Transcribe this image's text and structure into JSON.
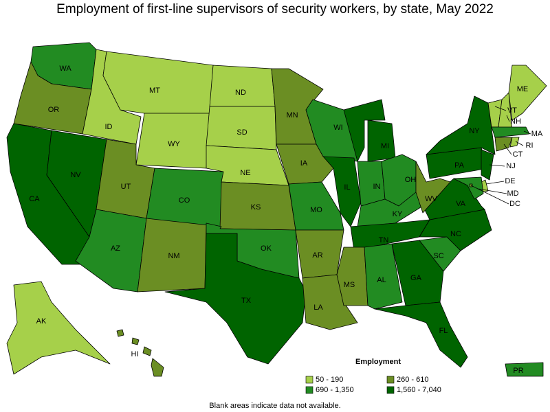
{
  "title": "Employment of first-line supervisors of security workers, by state, May 2022",
  "legend": {
    "title": "Employment",
    "items": [
      {
        "label": "50 - 190",
        "color": "#a6d04a"
      },
      {
        "label": "260 - 610",
        "color": "#6b8e23"
      },
      {
        "label": "690 - 1,350",
        "color": "#228b22"
      },
      {
        "label": "1,560 - 7,040",
        "color": "#006400"
      }
    ]
  },
  "states": [
    {
      "label": "WA",
      "color": "#228b22"
    },
    {
      "label": "OR",
      "color": "#6b8e23"
    },
    {
      "label": "CA",
      "color": "#006400"
    },
    {
      "label": "NV",
      "color": "#006400"
    },
    {
      "label": "ID",
      "color": "#a6d04a"
    },
    {
      "label": "MT",
      "color": "#a6d04a"
    },
    {
      "label": "WY",
      "color": "#a6d04a"
    },
    {
      "label": "UT",
      "color": "#6b8e23"
    },
    {
      "label": "AZ",
      "color": "#228b22"
    },
    {
      "label": "NM",
      "color": "#6b8e23"
    },
    {
      "label": "CO",
      "color": "#228b22"
    },
    {
      "label": "ND",
      "color": "#a6d04a"
    },
    {
      "label": "SD",
      "color": "#a6d04a"
    },
    {
      "label": "NE",
      "color": "#a6d04a"
    },
    {
      "label": "KS",
      "color": "#6b8e23"
    },
    {
      "label": "OK",
      "color": "#228b22"
    },
    {
      "label": "TX",
      "color": "#006400"
    },
    {
      "label": "MN",
      "color": "#6b8e23"
    },
    {
      "label": "IA",
      "color": "#6b8e23"
    },
    {
      "label": "MO",
      "color": "#228b22"
    },
    {
      "label": "AR",
      "color": "#6b8e23"
    },
    {
      "label": "LA",
      "color": "#6b8e23"
    },
    {
      "label": "WI",
      "color": "#228b22"
    },
    {
      "label": "IL",
      "color": "#006400"
    },
    {
      "label": "MI",
      "color": "#006400"
    },
    {
      "label": "IN",
      "color": "#228b22"
    },
    {
      "label": "OH",
      "color": "#228b22"
    },
    {
      "label": "KY",
      "color": "#228b22"
    },
    {
      "label": "TN",
      "color": "#006400"
    },
    {
      "label": "MS",
      "color": "#6b8e23"
    },
    {
      "label": "AL",
      "color": "#228b22"
    },
    {
      "label": "GA",
      "color": "#006400"
    },
    {
      "label": "FL",
      "color": "#006400"
    },
    {
      "label": "SC",
      "color": "#228b22"
    },
    {
      "label": "NC",
      "color": "#006400"
    },
    {
      "label": "VA",
      "color": "#006400"
    },
    {
      "label": "WV",
      "color": "#6b8e23"
    },
    {
      "label": "PA",
      "color": "#006400"
    },
    {
      "label": "NY",
      "color": "#006400"
    },
    {
      "label": "VT",
      "color": "#a6d04a"
    },
    {
      "label": "NH",
      "color": "#a6d04a"
    },
    {
      "label": "ME",
      "color": "#a6d04a"
    },
    {
      "label": "MA",
      "color": "#228b22"
    },
    {
      "label": "CT",
      "color": "#6b8e23"
    },
    {
      "label": "RI",
      "color": "#a6d04a"
    },
    {
      "label": "NJ",
      "color": "#006400"
    },
    {
      "label": "DE",
      "color": "#a6d04a"
    },
    {
      "label": "MD",
      "color": "#228b22"
    },
    {
      "label": "DC",
      "color": "#6b8e23"
    },
    {
      "label": "AK",
      "color": "#a6d04a"
    },
    {
      "label": "HI",
      "color": "#6b8e23"
    },
    {
      "label": "PR",
      "color": "#228b22"
    }
  ],
  "footnote": "Blank areas indicate data not available."
}
